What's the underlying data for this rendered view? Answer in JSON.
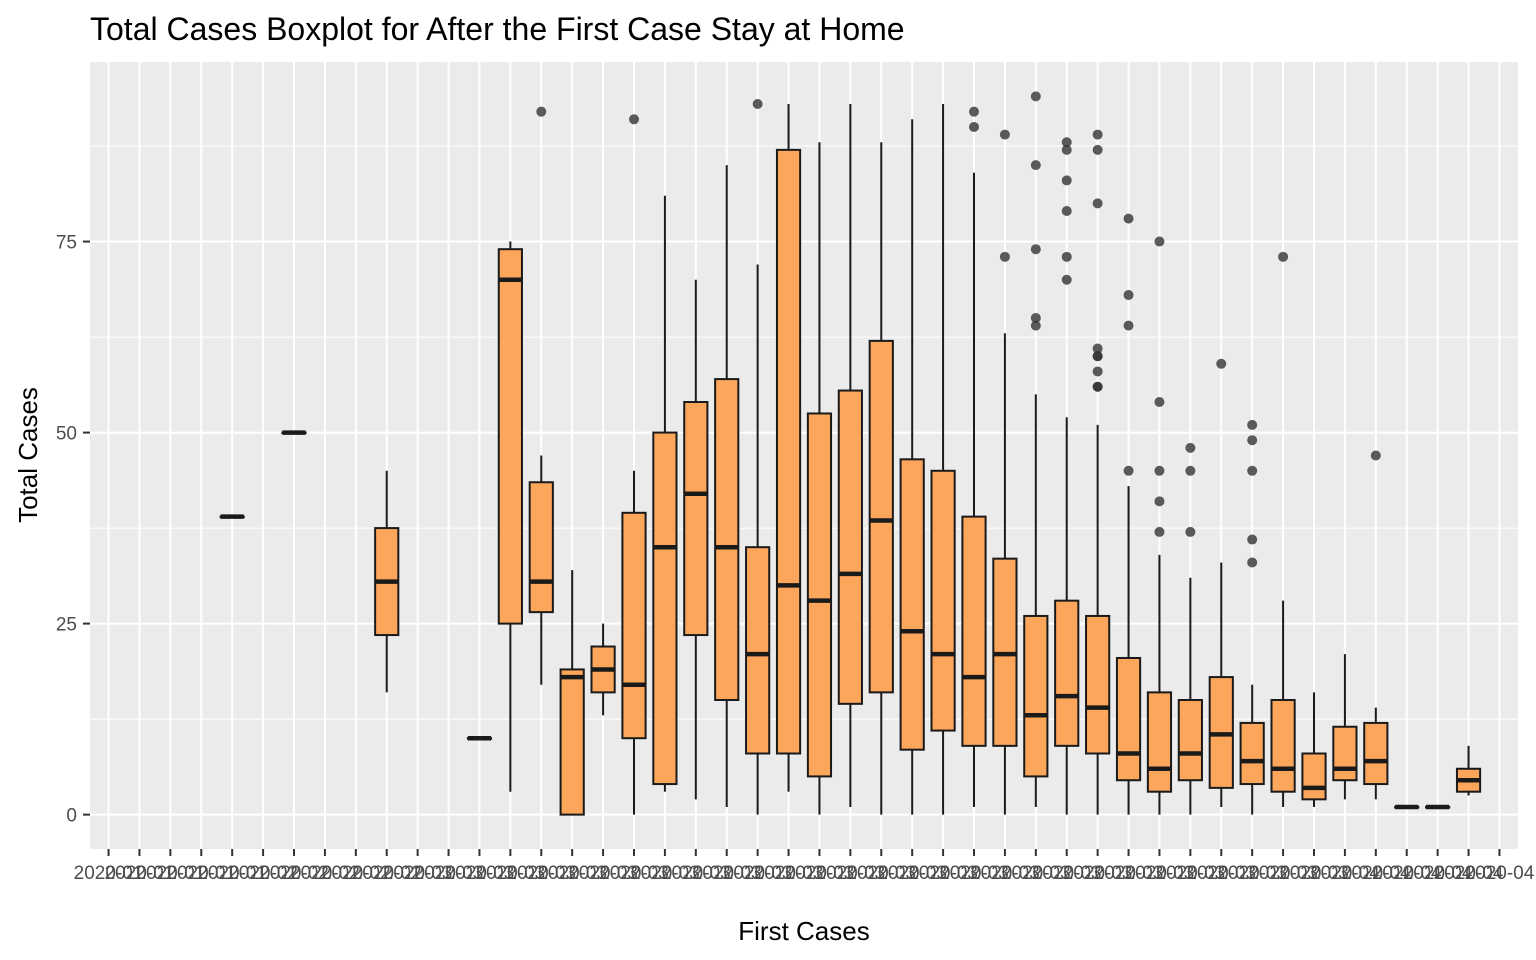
{
  "chart_data": {
    "type": "boxplot",
    "title": "Total Cases Boxplot for After the First Case Stay at Home",
    "xlabel": "First Cases",
    "ylabel": "Total Cases",
    "ylim": [
      -4.5,
      98.5
    ],
    "y_ticks": [
      0,
      25,
      50,
      75
    ],
    "grid": true,
    "fill_color": "#F4A460",
    "box_fill": "#FCA65C",
    "line_color": "#1A1A1A",
    "panel_color": "#EBEBEB",
    "categories": [
      "2020-01",
      "2020-01",
      "2020-01",
      "2020-01",
      "2020-01",
      "2020-02",
      "2020-02",
      "2020-02",
      "2020-02",
      "2020-02",
      "2020-03",
      "2020-03",
      "2020-03",
      "2020-03",
      "2020-03",
      "2020-03",
      "2020-03",
      "2020-03",
      "2020-03",
      "2020-03",
      "2020-03",
      "2020-03",
      "2020-03",
      "2020-03",
      "2020-03",
      "2020-03",
      "2020-03",
      "2020-03",
      "2020-03",
      "2020-03",
      "2020-03",
      "2020-03",
      "2020-03",
      "2020-03",
      "2020-03",
      "2020-03",
      "2020-03",
      "2020-03",
      "2020-03",
      "2020-03",
      "2020-04",
      "2020-04",
      "2020-04",
      "2020-04",
      "2020-04",
      "2020-04"
    ],
    "boxes": [
      {
        "pos": 5,
        "min": 39,
        "q1": 39,
        "median": 39,
        "q3": 39,
        "max": 39,
        "outliers": []
      },
      {
        "pos": 7,
        "min": 50,
        "q1": 50,
        "median": 50,
        "q3": 50,
        "max": 50,
        "outliers": []
      },
      {
        "pos": 10,
        "min": 16,
        "q1": 23.5,
        "median": 30.5,
        "q3": 37.5,
        "max": 45,
        "outliers": []
      },
      {
        "pos": 13,
        "min": 10,
        "q1": 10,
        "median": 10,
        "q3": 10,
        "max": 10,
        "outliers": []
      },
      {
        "pos": 14,
        "min": 3,
        "q1": 25,
        "median": 70,
        "q3": 74,
        "max": 75,
        "outliers": []
      },
      {
        "pos": 15,
        "min": 17,
        "q1": 26.5,
        "median": 30.5,
        "q3": 43.5,
        "max": 47,
        "outliers": [
          92
        ]
      },
      {
        "pos": 16,
        "min": 0,
        "q1": 0,
        "median": 18,
        "q3": 19,
        "max": 32,
        "outliers": []
      },
      {
        "pos": 17,
        "min": 13,
        "q1": 16,
        "median": 19,
        "q3": 22,
        "max": 25,
        "outliers": []
      },
      {
        "pos": 18,
        "min": 0,
        "q1": 10,
        "median": 17,
        "q3": 39.5,
        "max": 45,
        "outliers": [
          91
        ]
      },
      {
        "pos": 19,
        "min": 3,
        "q1": 4,
        "median": 35,
        "q3": 50,
        "max": 81,
        "outliers": []
      },
      {
        "pos": 20,
        "min": 2,
        "q1": 23.5,
        "median": 42,
        "q3": 54,
        "max": 70,
        "outliers": []
      },
      {
        "pos": 21,
        "min": 1,
        "q1": 15,
        "median": 35,
        "q3": 57,
        "max": 85,
        "outliers": []
      },
      {
        "pos": 22,
        "min": 0,
        "q1": 8,
        "median": 21,
        "q3": 35,
        "max": 72,
        "outliers": [
          93
        ]
      },
      {
        "pos": 23,
        "min": 3,
        "q1": 8,
        "median": 30,
        "q3": 87,
        "max": 93,
        "outliers": []
      },
      {
        "pos": 24,
        "min": 0,
        "q1": 5,
        "median": 28,
        "q3": 52.5,
        "max": 88,
        "outliers": []
      },
      {
        "pos": 25,
        "min": 1,
        "q1": 14.5,
        "median": 31.5,
        "q3": 55.5,
        "max": 93,
        "outliers": []
      },
      {
        "pos": 26,
        "min": 0,
        "q1": 16,
        "median": 38.5,
        "q3": 62,
        "max": 88,
        "outliers": []
      },
      {
        "pos": 27,
        "min": 0,
        "q1": 8.5,
        "median": 24,
        "q3": 46.5,
        "max": 91,
        "outliers": []
      },
      {
        "pos": 28,
        "min": 0,
        "q1": 11,
        "median": 21,
        "q3": 45,
        "max": 93,
        "outliers": []
      },
      {
        "pos": 29,
        "min": 1,
        "q1": 9,
        "median": 18,
        "q3": 39,
        "max": 84,
        "outliers": [
          92,
          90
        ]
      },
      {
        "pos": 30,
        "min": 0,
        "q1": 9,
        "median": 21,
        "q3": 33.5,
        "max": 63,
        "outliers": [
          89,
          73
        ]
      },
      {
        "pos": 31,
        "min": 1,
        "q1": 5,
        "median": 13,
        "q3": 26,
        "max": 55,
        "outliers": [
          94,
          85,
          74,
          65,
          64
        ]
      },
      {
        "pos": 32,
        "min": 0,
        "q1": 9,
        "median": 15.5,
        "q3": 28,
        "max": 52,
        "outliers": [
          88,
          87,
          83,
          79,
          73,
          70
        ]
      },
      {
        "pos": 33,
        "min": 0,
        "q1": 8,
        "median": 14,
        "q3": 26,
        "max": 51,
        "outliers": [
          89,
          87,
          80,
          61,
          60,
          60,
          58,
          56,
          56
        ]
      },
      {
        "pos": 34,
        "min": 0,
        "q1": 4.5,
        "median": 8,
        "q3": 20.5,
        "max": 43,
        "outliers": [
          78,
          68,
          64,
          45
        ]
      },
      {
        "pos": 35,
        "min": 0,
        "q1": 3,
        "median": 6,
        "q3": 16,
        "max": 34,
        "outliers": [
          75,
          54,
          45,
          41,
          37
        ]
      },
      {
        "pos": 36,
        "min": 0,
        "q1": 4.5,
        "median": 8,
        "q3": 15,
        "max": 31,
        "outliers": [
          48,
          45,
          37
        ]
      },
      {
        "pos": 37,
        "min": 1,
        "q1": 3.5,
        "median": 10.5,
        "q3": 18,
        "max": 33,
        "outliers": [
          59
        ]
      },
      {
        "pos": 38,
        "min": 0,
        "q1": 4,
        "median": 7,
        "q3": 12,
        "max": 17,
        "outliers": [
          51,
          49,
          45,
          36,
          33
        ]
      },
      {
        "pos": 39,
        "min": 1,
        "q1": 3,
        "median": 6,
        "q3": 15,
        "max": 28,
        "outliers": [
          73
        ]
      },
      {
        "pos": 40,
        "min": 1,
        "q1": 2,
        "median": 3.5,
        "q3": 8,
        "max": 16,
        "outliers": []
      },
      {
        "pos": 41,
        "min": 2,
        "q1": 4.5,
        "median": 6,
        "q3": 11.5,
        "max": 21,
        "outliers": []
      },
      {
        "pos": 42,
        "min": 2,
        "q1": 4,
        "median": 7,
        "q3": 12,
        "max": 14,
        "outliers": [
          47
        ]
      },
      {
        "pos": 43,
        "min": 1,
        "q1": 1,
        "median": 1,
        "q3": 1,
        "max": 1,
        "outliers": []
      },
      {
        "pos": 44,
        "min": 1,
        "q1": 1,
        "median": 1,
        "q3": 1,
        "max": 1,
        "outliers": []
      },
      {
        "pos": 45,
        "min": 2.5,
        "q1": 3,
        "median": 4.5,
        "q3": 6,
        "max": 9,
        "outliers": []
      }
    ]
  }
}
